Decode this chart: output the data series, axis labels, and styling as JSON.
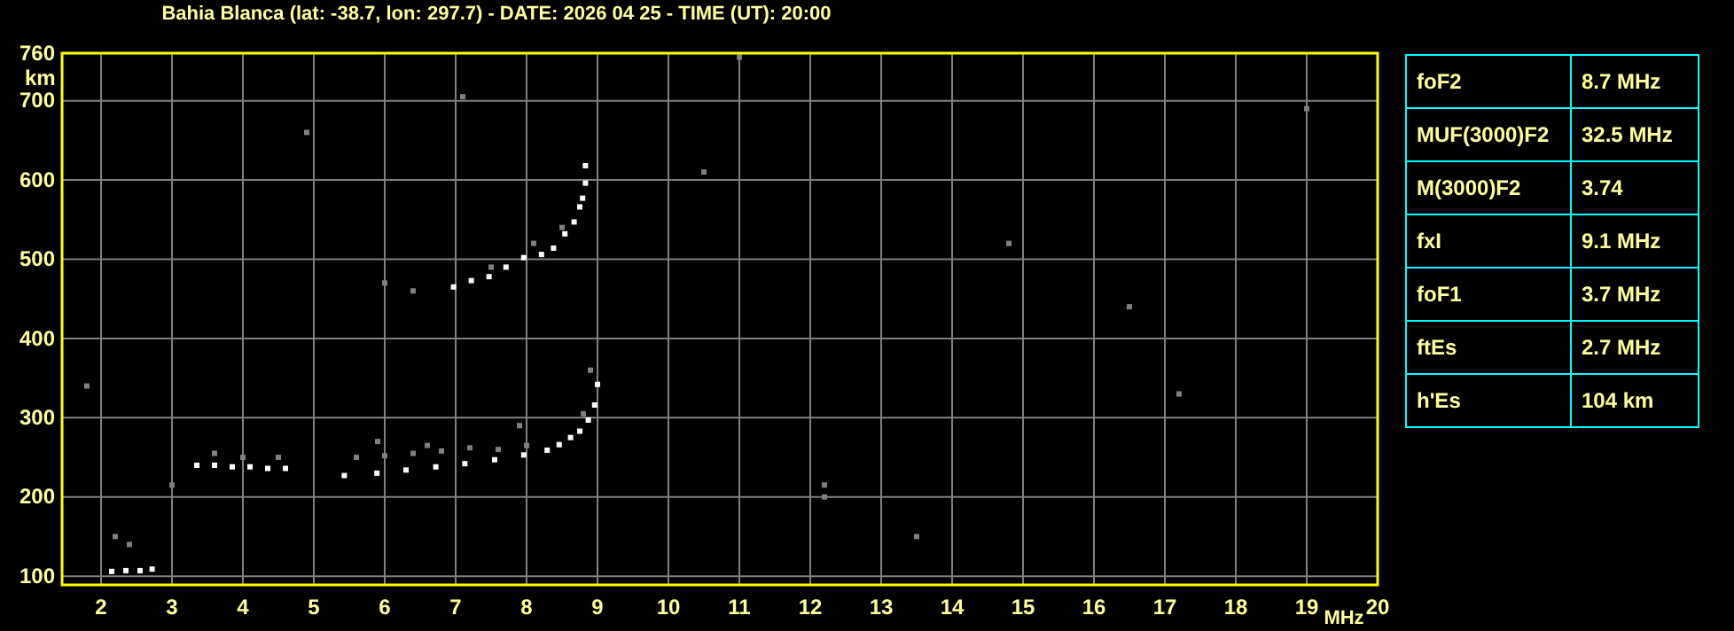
{
  "chart_data": [
    {
      "type": "scatter",
      "title": "Bahia Blanca (lat: -38.7, lon: 297.7) - DATE: 2026 04 25 - TIME (UT): 20:00",
      "xlabel": "MHz",
      "ylabel": "km",
      "xlim": [
        1.45,
        20
      ],
      "ylim": [
        89,
        760
      ],
      "xticks": [
        2,
        3,
        4,
        5,
        6,
        7,
        8,
        9,
        10,
        11,
        12,
        13,
        14,
        15,
        16,
        17,
        18,
        19,
        20
      ],
      "yticks": [
        100,
        200,
        300,
        400,
        500,
        600,
        700,
        760
      ],
      "grid": true,
      "marker": "square",
      "series": [
        {
          "color": "#ffffff",
          "x": [
            5.43,
            5.89,
            6.3,
            6.72,
            7.13,
            7.55,
            7.96,
            8.29,
            8.46,
            8.62,
            8.75,
            8.87,
            8.96,
            9.0,
            6.97,
            7.22,
            7.47,
            7.71,
            7.96,
            8.21,
            8.38,
            8.54,
            8.67,
            8.75,
            8.79,
            8.83,
            8.83,
            3.35,
            3.6,
            3.85,
            4.1,
            4.35,
            4.6,
            2.15,
            2.35,
            2.55,
            2.72
          ],
          "values": [
            227,
            230,
            234,
            238,
            242,
            247,
            253,
            259,
            266,
            275,
            283,
            297,
            316,
            342,
            465,
            473,
            478,
            490,
            502,
            506,
            514,
            532,
            547,
            566,
            577,
            596,
            618,
            240,
            240,
            238,
            238,
            236,
            236,
            106,
            107,
            107,
            109
          ]
        },
        {
          "color": "#808080",
          "x": [
            5.6,
            6.0,
            6.4,
            6.8,
            7.2,
            7.6,
            8.0,
            6.6,
            5.9,
            7.9,
            8.8,
            8.9,
            6.4,
            6.0,
            7.5,
            8.1,
            8.5,
            3.6,
            4.0,
            4.5,
            2.4,
            2.2,
            3.0,
            12.2,
            12.2,
            7.1,
            11.0,
            14.8,
            16.5,
            19.0,
            13.5,
            10.5,
            17.2,
            1.8,
            4.9
          ],
          "values": [
            250,
            252,
            255,
            258,
            262,
            260,
            265,
            265,
            270,
            290,
            305,
            360,
            460,
            470,
            490,
            520,
            540,
            255,
            250,
            250,
            140,
            150,
            215,
            200,
            215,
            705,
            755,
            520,
            440,
            690,
            150,
            610,
            330,
            340,
            660
          ]
        }
      ]
    },
    {
      "type": "other",
      "categories": [
        "foF2",
        "MUF(3000)F2",
        "M(3000)F2",
        "fxI",
        "foF1",
        "ftEs",
        "h'Es"
      ],
      "value_labels": [
        "8.7 MHz",
        "32.5 MHz",
        "3.74",
        "9.1 MHz",
        "3.7 MHz",
        "2.7 MHz",
        "104 km"
      ]
    }
  ]
}
